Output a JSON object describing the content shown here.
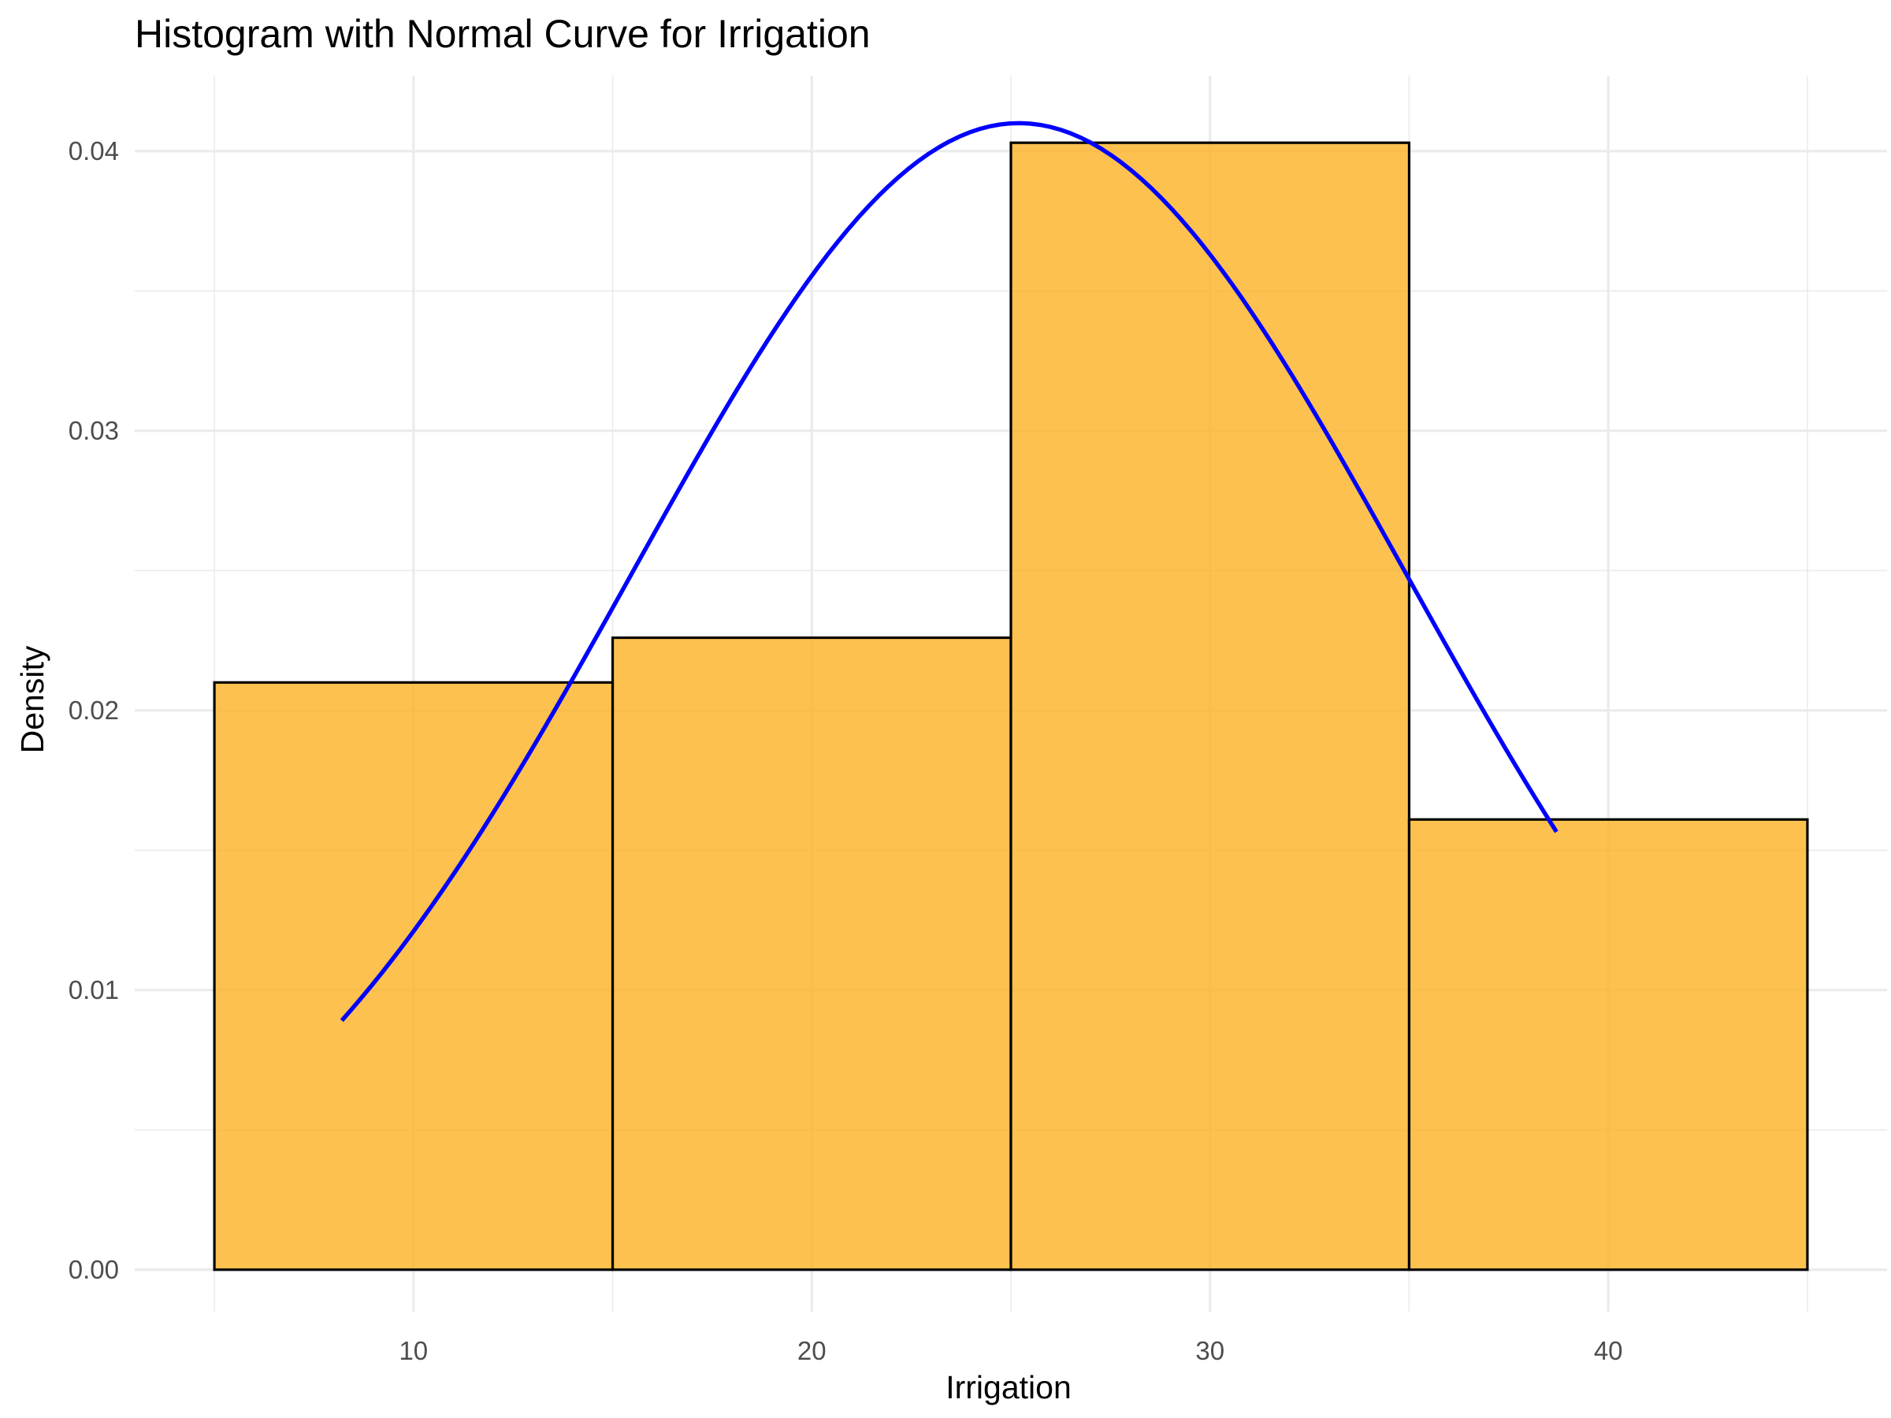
{
  "chart_data": {
    "type": "histogram",
    "title": "Histogram with Normal Curve for Irrigation",
    "xlabel": "Irrigation",
    "ylabel": "Density",
    "xlim": [
      3.0,
      47.0
    ],
    "ylim": [
      -0.0015,
      0.0427
    ],
    "x_ticks": [
      10,
      20,
      30,
      40
    ],
    "x_tick_labels": [
      "10",
      "20",
      "30",
      "40"
    ],
    "x_minor_ticks": [
      5,
      15,
      25,
      35,
      45
    ],
    "y_ticks": [
      0.0,
      0.01,
      0.02,
      0.03,
      0.04
    ],
    "y_tick_labels": [
      "0.00",
      "0.01",
      "0.02",
      "0.03",
      "0.04"
    ],
    "y_minor_ticks": [
      0.005,
      0.015,
      0.025,
      0.035
    ],
    "grid": true,
    "legend": "none",
    "bins": [
      {
        "x_start": 5,
        "x_end": 15,
        "density": 0.021
      },
      {
        "x_start": 15,
        "x_end": 25,
        "density": 0.0226
      },
      {
        "x_start": 25,
        "x_end": 35,
        "density": 0.0403
      },
      {
        "x_start": 35,
        "x_end": 45,
        "density": 0.0161
      }
    ],
    "bar_fill": "#FBB123",
    "bar_fill_opacity": 0.8,
    "bar_outline": "#000000",
    "normal_curve": {
      "name": "normal density",
      "color": "#0000FF",
      "mean": 25.2,
      "sd": 9.73,
      "x_range": [
        8.2,
        38.7
      ]
    }
  }
}
